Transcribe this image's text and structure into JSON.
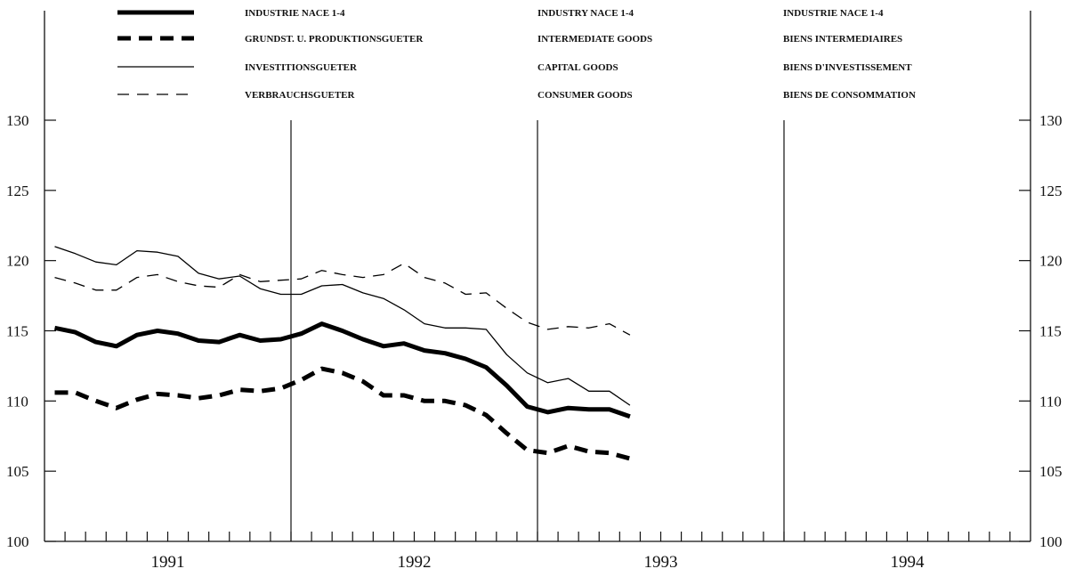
{
  "chart_data": {
    "type": "line",
    "title": "",
    "xlabel": "",
    "ylabel": "",
    "ylim": [
      100,
      130
    ],
    "yticks": [
      100,
      105,
      110,
      115,
      120,
      125,
      130
    ],
    "years": [
      "1991",
      "1992",
      "1993",
      "1994"
    ],
    "months_per_year": 12,
    "grid": false,
    "legend_position": "top",
    "series": [
      {
        "name_de": "INDUSTRIE NACE 1-4",
        "name_en": "INDUSTRY NACE 1-4",
        "name_fr": "INDUSTRIE NACE 1-4",
        "style": "thick-solid",
        "color": "#000000",
        "values": [
          115.2,
          114.9,
          114.2,
          113.9,
          114.7,
          115.0,
          114.8,
          114.3,
          114.2,
          114.7,
          114.3,
          114.4,
          114.8,
          115.5,
          115.0,
          114.4,
          113.9,
          114.1,
          113.6,
          113.4,
          113.0,
          112.4,
          111.1,
          109.6,
          109.2,
          109.5,
          109.4,
          109.4,
          108.9
        ]
      },
      {
        "name_de": "GRUNDST. U. PRODUKTIONSGUETER",
        "name_en": "INTERMEDIATE GOODS",
        "name_fr": "BIENS INTERMEDIAIRES",
        "style": "thick-dashed",
        "color": "#000000",
        "values": [
          110.6,
          110.6,
          110.0,
          109.5,
          110.1,
          110.5,
          110.4,
          110.2,
          110.4,
          110.8,
          110.7,
          110.9,
          111.5,
          112.3,
          112.0,
          111.4,
          110.4,
          110.4,
          110.0,
          110.0,
          109.7,
          109.0,
          107.7,
          106.5,
          106.3,
          106.8,
          106.4,
          106.3,
          105.9
        ]
      },
      {
        "name_de": "INVESTITIONSGUETER",
        "name_en": "CAPITAL GOODS",
        "name_fr": "BIENS D'INVESTISSEMENT",
        "style": "thin-solid",
        "color": "#000000",
        "values": [
          121.0,
          120.5,
          119.9,
          119.7,
          120.7,
          120.6,
          120.3,
          119.1,
          118.7,
          118.9,
          118.0,
          117.6,
          117.6,
          118.2,
          118.3,
          117.7,
          117.3,
          116.5,
          115.5,
          115.2,
          115.2,
          115.1,
          113.3,
          112.0,
          111.3,
          111.6,
          110.7,
          110.7,
          109.7
        ]
      },
      {
        "name_de": "VERBRAUCHSGUETER",
        "name_en": "CONSUMER GOODS",
        "name_fr": "BIENS DE CONSOMMATION",
        "style": "thin-dashed",
        "color": "#000000",
        "values": [
          118.8,
          118.4,
          117.9,
          117.9,
          118.8,
          119.0,
          118.5,
          118.2,
          118.1,
          119.0,
          118.5,
          118.6,
          118.7,
          119.3,
          119.0,
          118.8,
          119.0,
          119.8,
          118.8,
          118.4,
          117.6,
          117.7,
          116.6,
          115.6,
          115.1,
          115.3,
          115.2,
          115.5,
          114.7
        ]
      }
    ]
  }
}
